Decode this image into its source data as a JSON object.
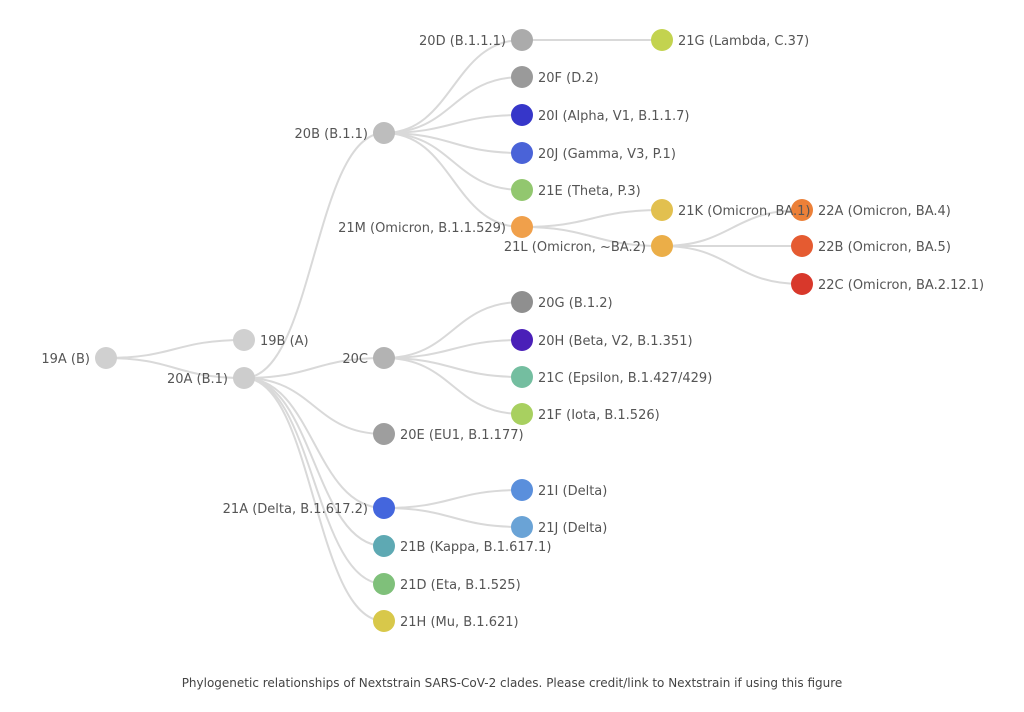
{
  "caption": "Phylogenetic relationships of Nextstrain SARS-CoV-2 clades. Please credit/link to Nextstrain if using this figure",
  "clades": [
    {
      "id": "19A",
      "label": "19A (B)",
      "color": "#d0d0d0"
    },
    {
      "id": "19B",
      "label": "19B (A)",
      "parent": "19A",
      "color": "#d0d0d0"
    },
    {
      "id": "20A",
      "label": "20A (B.1)",
      "parent": "19A",
      "color": "#cdcdcd"
    },
    {
      "id": "20B",
      "label": "20B (B.1.1)",
      "parent": "20A",
      "color": "#bdbdbd"
    },
    {
      "id": "20C",
      "label": "20C",
      "parent": "20A",
      "color": "#b3b3b3"
    },
    {
      "id": "20E",
      "label": "20E (EU1, B.1.177)",
      "parent": "20A",
      "color": "#9e9e9e"
    },
    {
      "id": "21A",
      "label": "21A (Delta, B.1.617.2)",
      "parent": "20A",
      "color": "#4466dd"
    },
    {
      "id": "21B",
      "label": "21B (Kappa, B.1.617.1)",
      "parent": "20A",
      "color": "#5ea9b3"
    },
    {
      "id": "21D",
      "label": "21D (Eta, B.1.525)",
      "parent": "20A",
      "color": "#7fc07a"
    },
    {
      "id": "21H",
      "label": "21H (Mu, B.1.621)",
      "parent": "20A",
      "color": "#d8c84a"
    },
    {
      "id": "20D",
      "label": "20D (B.1.1.1)",
      "parent": "20B",
      "color": "#ababab"
    },
    {
      "id": "20F",
      "label": "20F (D.2)",
      "parent": "20B",
      "color": "#9a9a9a"
    },
    {
      "id": "20I",
      "label": "20I (Alpha, V1, B.1.1.7)",
      "parent": "20B",
      "color": "#3636c9"
    },
    {
      "id": "20J",
      "label": "20J (Gamma, V3, P.1)",
      "parent": "20B",
      "color": "#4a63d8"
    },
    {
      "id": "21E",
      "label": "21E (Theta, P.3)",
      "parent": "20B",
      "color": "#92c76f"
    },
    {
      "id": "21M",
      "label": "21M (Omicron, B.1.1.529)",
      "parent": "20B",
      "color": "#f0a04b"
    },
    {
      "id": "21G",
      "label": "21G (Lambda, C.37)",
      "parent": "20D",
      "color": "#c3d34f"
    },
    {
      "id": "21K",
      "label": "21K (Omicron, BA.1)",
      "parent": "21M",
      "color": "#e2c04f"
    },
    {
      "id": "21L",
      "label": "21L (Omicron, ~BA.2)",
      "parent": "21M",
      "color": "#ebae48"
    },
    {
      "id": "22A",
      "label": "22A (Omicron, BA.4)",
      "parent": "21L",
      "color": "#ec8038"
    },
    {
      "id": "22B",
      "label": "22B (Omicron, BA.5)",
      "parent": "21L",
      "color": "#e55b31"
    },
    {
      "id": "22C",
      "label": "22C (Omicron, BA.2.12.1)",
      "parent": "21L",
      "color": "#d8382b"
    },
    {
      "id": "20G",
      "label": "20G (B.1.2)",
      "parent": "20C",
      "color": "#8f8f8f"
    },
    {
      "id": "20H",
      "label": "20H (Beta, V2, B.1.351)",
      "parent": "20C",
      "color": "#4a1fb8"
    },
    {
      "id": "21C",
      "label": "21C (Epsilon, B.1.427/429)",
      "parent": "20C",
      "color": "#74bea0"
    },
    {
      "id": "21F",
      "label": "21F (Iota, B.1.526)",
      "parent": "20C",
      "color": "#a8d060"
    },
    {
      "id": "21I",
      "label": "21I (Delta)",
      "parent": "21A",
      "color": "#5a8fdc"
    },
    {
      "id": "21J",
      "label": "21J (Delta)",
      "parent": "21A",
      "color": "#6aa3d6"
    }
  ]
}
